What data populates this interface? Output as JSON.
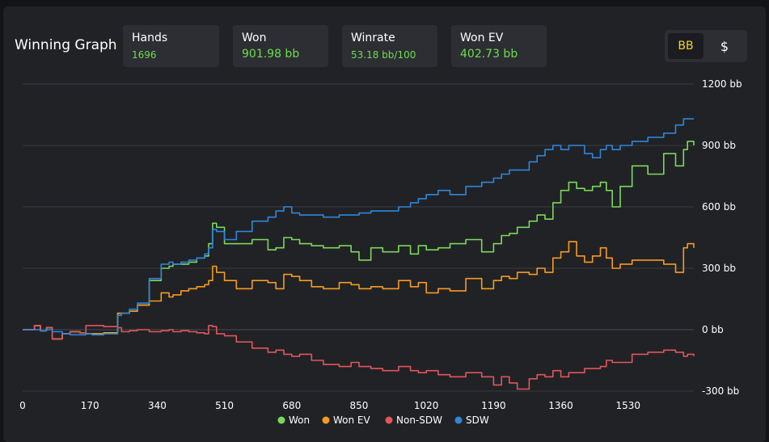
{
  "header": {
    "title": "Winning Graph",
    "stats": [
      {
        "label": "Hands",
        "value": "1696"
      },
      {
        "label": "Won",
        "value": "901.98 bb"
      },
      {
        "label": "Winrate",
        "value": "53.18 bb/100"
      },
      {
        "label": "Won EV",
        "value": "402.73 bb"
      }
    ],
    "unit_toggle": {
      "bb_label": "BB",
      "dollar_label": "$",
      "selected": "BB"
    }
  },
  "colors": {
    "won": "#7cd85a",
    "won_ev": "#f59b23",
    "non_sdw": "#e0565a",
    "sdw": "#2f86d8",
    "accent": "#f5d524"
  },
  "chart_data": {
    "type": "line",
    "title": "Winning Graph",
    "xlabel": "",
    "ylabel": "",
    "xlim": [
      0,
      1696
    ],
    "ylim": [
      -300,
      1200
    ],
    "x_ticks": [
      0,
      170,
      340,
      510,
      680,
      850,
      1020,
      1190,
      1360,
      1530
    ],
    "x_tick_labels": [
      "0",
      "170",
      "340",
      "510",
      "680",
      "850",
      "1020",
      "1190",
      "1360",
      "1530"
    ],
    "y_ticks": [
      1200,
      900,
      600,
      300,
      0,
      -300
    ],
    "y_tick_labels": [
      "1200 bb",
      "900 bb",
      "600 bb",
      "300 bb",
      "0 bb",
      "-300 bb"
    ],
    "grid": "horizontal",
    "legend_position": "bottom",
    "series": [
      {
        "name": "Won",
        "color": "#7cd85a",
        "x": [
          0,
          30,
          45,
          60,
          75,
          100,
          120,
          145,
          160,
          175,
          190,
          205,
          215,
          240,
          250,
          270,
          290,
          320,
          350,
          370,
          380,
          400,
          420,
          440,
          460,
          470,
          480,
          490,
          510,
          540,
          580,
          620,
          640,
          660,
          680,
          700,
          730,
          760,
          800,
          830,
          850,
          880,
          910,
          950,
          980,
          1000,
          1020,
          1050,
          1080,
          1120,
          1160,
          1190,
          1210,
          1230,
          1250,
          1280,
          1300,
          1320,
          1340,
          1360,
          1380,
          1400,
          1420,
          1440,
          1460,
          1475,
          1490,
          1510,
          1540,
          1580,
          1620,
          1650,
          1670,
          1680,
          1696
        ],
        "y": [
          0,
          20,
          -5,
          10,
          -45,
          -20,
          -10,
          -15,
          -20,
          -20,
          -20,
          -15,
          -15,
          80,
          80,
          90,
          120,
          240,
          300,
          310,
          320,
          320,
          330,
          350,
          360,
          420,
          520,
          500,
          420,
          420,
          440,
          390,
          400,
          450,
          440,
          420,
          410,
          400,
          410,
          380,
          340,
          400,
          380,
          410,
          370,
          410,
          390,
          400,
          420,
          440,
          380,
          420,
          460,
          470,
          500,
          530,
          560,
          540,
          620,
          680,
          720,
          690,
          680,
          700,
          720,
          680,
          600,
          700,
          800,
          760,
          860,
          800,
          880,
          920,
          900
        ]
      },
      {
        "name": "Won EV",
        "color": "#f59b23",
        "x": [
          0,
          30,
          45,
          60,
          75,
          100,
          120,
          145,
          160,
          175,
          190,
          205,
          215,
          240,
          250,
          270,
          290,
          320,
          350,
          370,
          380,
          400,
          420,
          440,
          460,
          470,
          480,
          490,
          510,
          540,
          580,
          620,
          640,
          660,
          680,
          700,
          730,
          760,
          800,
          830,
          850,
          880,
          910,
          950,
          980,
          1000,
          1020,
          1050,
          1080,
          1120,
          1160,
          1190,
          1210,
          1230,
          1250,
          1280,
          1300,
          1320,
          1340,
          1360,
          1380,
          1400,
          1420,
          1440,
          1460,
          1475,
          1490,
          1510,
          1540,
          1580,
          1620,
          1650,
          1670,
          1680,
          1696
        ],
        "y": [
          0,
          20,
          -5,
          10,
          -45,
          -20,
          -10,
          -15,
          -20,
          -20,
          -20,
          -15,
          -15,
          80,
          80,
          90,
          120,
          140,
          180,
          160,
          170,
          190,
          200,
          210,
          220,
          240,
          310,
          280,
          240,
          200,
          240,
          230,
          200,
          270,
          260,
          240,
          210,
          200,
          230,
          220,
          200,
          210,
          200,
          240,
          210,
          230,
          180,
          200,
          190,
          250,
          200,
          240,
          260,
          250,
          280,
          270,
          300,
          280,
          350,
          380,
          430,
          360,
          330,
          360,
          400,
          350,
          300,
          320,
          340,
          340,
          320,
          280,
          400,
          420,
          400
        ]
      },
      {
        "name": "Non-SDW",
        "color": "#e0565a",
        "x": [
          0,
          30,
          45,
          60,
          75,
          100,
          120,
          145,
          160,
          175,
          190,
          205,
          215,
          240,
          250,
          270,
          290,
          320,
          350,
          370,
          380,
          400,
          420,
          440,
          460,
          470,
          480,
          490,
          510,
          540,
          580,
          620,
          640,
          660,
          680,
          700,
          730,
          760,
          800,
          830,
          850,
          880,
          910,
          950,
          980,
          1000,
          1020,
          1050,
          1080,
          1120,
          1160,
          1190,
          1210,
          1230,
          1250,
          1280,
          1300,
          1320,
          1340,
          1360,
          1380,
          1400,
          1420,
          1440,
          1460,
          1475,
          1490,
          1510,
          1540,
          1580,
          1620,
          1650,
          1670,
          1680,
          1696
        ],
        "y": [
          0,
          20,
          -5,
          10,
          -45,
          -20,
          -10,
          -15,
          20,
          20,
          20,
          15,
          15,
          10,
          -10,
          -5,
          0,
          -10,
          -5,
          0,
          -10,
          -5,
          -10,
          -15,
          -20,
          20,
          15,
          -20,
          -30,
          -60,
          -90,
          -110,
          -100,
          -120,
          -130,
          -120,
          -150,
          -170,
          -180,
          -160,
          -180,
          -190,
          -200,
          -180,
          -200,
          -210,
          -200,
          -220,
          -230,
          -210,
          -230,
          -270,
          -230,
          -260,
          -290,
          -240,
          -220,
          -230,
          -200,
          -230,
          -210,
          -210,
          -190,
          -190,
          -180,
          -150,
          -160,
          -160,
          -120,
          -110,
          -100,
          -110,
          -130,
          -120,
          -130
        ]
      },
      {
        "name": "SDW",
        "color": "#2f86d8",
        "x": [
          0,
          30,
          45,
          60,
          75,
          100,
          120,
          145,
          160,
          175,
          190,
          205,
          215,
          240,
          250,
          270,
          290,
          320,
          350,
          370,
          380,
          400,
          420,
          440,
          460,
          470,
          480,
          490,
          510,
          540,
          580,
          620,
          640,
          660,
          680,
          700,
          730,
          760,
          800,
          830,
          850,
          880,
          910,
          950,
          980,
          1000,
          1020,
          1050,
          1080,
          1120,
          1160,
          1190,
          1210,
          1230,
          1250,
          1280,
          1300,
          1320,
          1340,
          1360,
          1380,
          1400,
          1420,
          1440,
          1460,
          1475,
          1490,
          1510,
          1540,
          1580,
          1620,
          1650,
          1670,
          1680,
          1696
        ],
        "y": [
          0,
          0,
          -5,
          0,
          -10,
          -20,
          -25,
          -25,
          -20,
          -25,
          -25,
          -20,
          -20,
          70,
          80,
          100,
          130,
          250,
          320,
          330,
          320,
          330,
          340,
          350,
          370,
          400,
          490,
          480,
          440,
          480,
          530,
          550,
          580,
          600,
          570,
          560,
          560,
          550,
          560,
          560,
          570,
          580,
          580,
          600,
          620,
          640,
          660,
          680,
          660,
          700,
          720,
          740,
          760,
          780,
          780,
          820,
          850,
          880,
          900,
          880,
          900,
          900,
          860,
          840,
          880,
          900,
          880,
          900,
          920,
          940,
          960,
          1000,
          1030,
          1030,
          1030
        ]
      }
    ]
  }
}
